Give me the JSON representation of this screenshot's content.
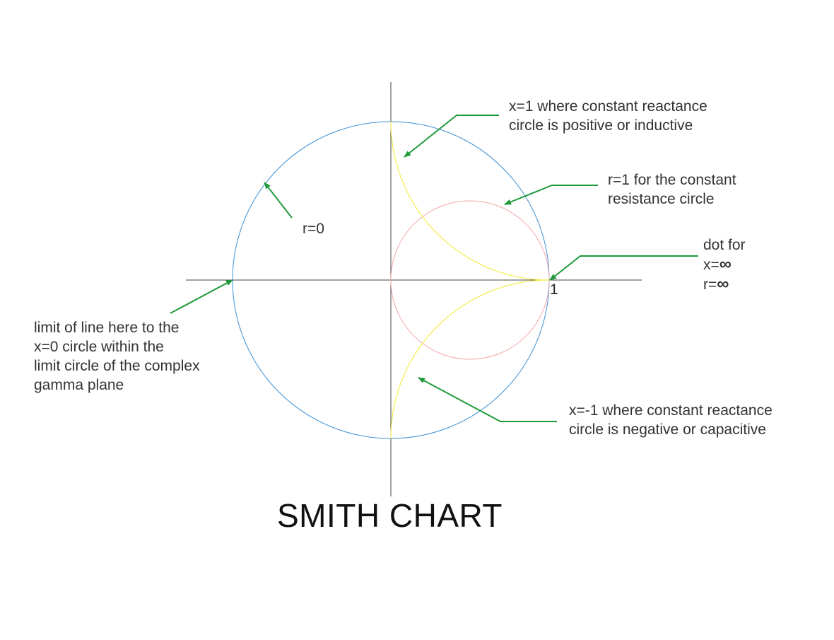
{
  "title": "SMITH CHART",
  "tick_label": "1",
  "labels": {
    "x_pos": [
      "x=1  where constant reactance",
      "circle is positive or inductive"
    ],
    "r_one": [
      "r=1 for the constant",
      "resistance circle"
    ],
    "r_zero": "r=0",
    "dot": {
      "line1": "dot for",
      "line2": "x=",
      "line3": "r=",
      "infinity": "∞"
    },
    "limit": [
      "limit of line here to the",
      "x=0 circle within the",
      "limit circle of the complex",
      "gamma plane"
    ],
    "x_neg": [
      "x=-1 where constant reactance",
      "circle is negative or capacitive"
    ]
  },
  "colors": {
    "axis": "#444444",
    "unit_circle": "#3b8fd6",
    "resistance_circle": "#f2a7a7",
    "reactance_arcs": "#f4ee5c",
    "arrows": "#1f9a3a",
    "text": "#333333"
  }
}
